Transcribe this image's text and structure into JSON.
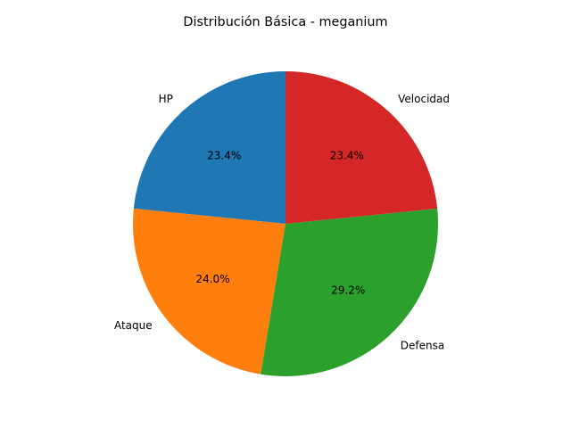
{
  "chart_data": {
    "type": "pie",
    "title": "Distribución Básica - meganium",
    "categories": [
      "HP",
      "Ataque",
      "Defensa",
      "Velocidad"
    ],
    "values": [
      23.4,
      24.0,
      29.2,
      23.4
    ],
    "percent_labels": [
      "23.4%",
      "24.0%",
      "29.2%",
      "23.4%"
    ],
    "colors": [
      "#1f77b4",
      "#ff7f0e",
      "#2ca02c",
      "#d62728"
    ],
    "start_angle_deg": 90,
    "direction": "counterclockwise",
    "legend": "none"
  }
}
